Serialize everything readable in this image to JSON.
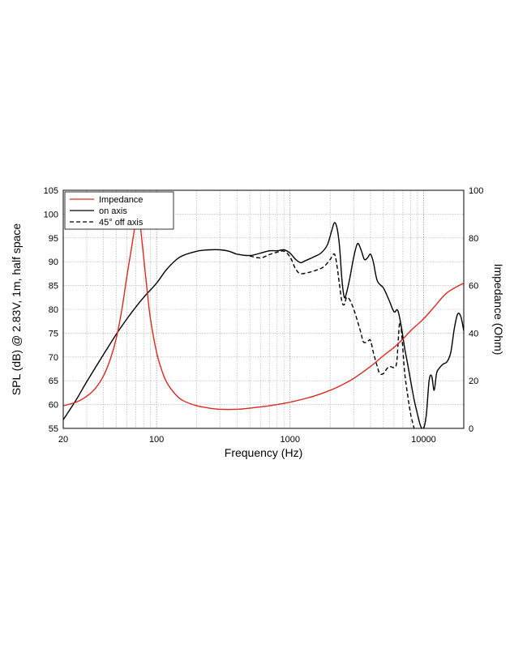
{
  "chart_data": {
    "type": "line",
    "title": "",
    "xlabel": "Frequency (Hz)",
    "ylabel": "SPL (dB) @ 2.83V, 1m, half space",
    "y2label": "Impedance (Ohm)",
    "xscale": "log",
    "xlim": [
      20,
      20000
    ],
    "ylim": [
      55,
      105
    ],
    "y2lim": [
      0,
      100
    ],
    "grid": true,
    "legend_position": "top-left",
    "x_tick_labels": [
      "20",
      "100",
      "1000",
      "10000"
    ],
    "x_ticks": [
      20,
      100,
      1000,
      10000
    ],
    "y_ticks": [
      55,
      60,
      65,
      70,
      75,
      80,
      85,
      90,
      95,
      100,
      105
    ],
    "y2_ticks": [
      0,
      20,
      40,
      60,
      80,
      100
    ],
    "series": [
      {
        "name": "Impedance",
        "color": "#d92b1f",
        "axis": "right",
        "style": "solid",
        "points": [
          [
            20,
            9.5
          ],
          [
            25,
            11
          ],
          [
            30,
            13.5
          ],
          [
            35,
            17
          ],
          [
            40,
            22
          ],
          [
            45,
            29
          ],
          [
            50,
            38
          ],
          [
            55,
            50
          ],
          [
            60,
            64
          ],
          [
            65,
            76
          ],
          [
            68,
            83
          ],
          [
            70,
            88
          ],
          [
            72,
            91
          ],
          [
            74,
            89
          ],
          [
            76,
            84
          ],
          [
            80,
            72
          ],
          [
            85,
            58
          ],
          [
            90,
            46
          ],
          [
            100,
            32
          ],
          [
            110,
            24
          ],
          [
            120,
            19
          ],
          [
            140,
            14
          ],
          [
            160,
            11.5
          ],
          [
            200,
            9.5
          ],
          [
            250,
            8.5
          ],
          [
            300,
            8
          ],
          [
            400,
            8
          ],
          [
            500,
            8.5
          ],
          [
            700,
            9.5
          ],
          [
            1000,
            11
          ],
          [
            1500,
            13.5
          ],
          [
            2000,
            16
          ],
          [
            2500,
            18.5
          ],
          [
            3000,
            21
          ],
          [
            4000,
            26
          ],
          [
            5000,
            30.5
          ],
          [
            6000,
            34
          ],
          [
            7000,
            37.5
          ],
          [
            8000,
            41
          ],
          [
            10000,
            46
          ],
          [
            12000,
            51
          ],
          [
            15000,
            57
          ],
          [
            20000,
            61
          ]
        ]
      },
      {
        "name": "on axis",
        "color": "#000000",
        "axis": "left",
        "style": "solid",
        "points": [
          [
            20,
            56.8
          ],
          [
            25,
            61
          ],
          [
            30,
            64.8
          ],
          [
            40,
            70.5
          ],
          [
            50,
            74.8
          ],
          [
            60,
            78
          ],
          [
            70,
            80.5
          ],
          [
            80,
            82.5
          ],
          [
            100,
            85.5
          ],
          [
            120,
            88.5
          ],
          [
            150,
            91
          ],
          [
            200,
            92.2
          ],
          [
            250,
            92.5
          ],
          [
            300,
            92.5
          ],
          [
            350,
            92.2
          ],
          [
            400,
            91.6
          ],
          [
            500,
            91.3
          ],
          [
            600,
            91.8
          ],
          [
            700,
            92.3
          ],
          [
            800,
            92.3
          ],
          [
            900,
            92.5
          ],
          [
            1000,
            91.8
          ],
          [
            1100,
            90.5
          ],
          [
            1200,
            89.8
          ],
          [
            1300,
            90.2
          ],
          [
            1500,
            91
          ],
          [
            1700,
            91.8
          ],
          [
            1900,
            93.5
          ],
          [
            2050,
            96.5
          ],
          [
            2150,
            98.2
          ],
          [
            2250,
            97
          ],
          [
            2350,
            93
          ],
          [
            2450,
            86
          ],
          [
            2550,
            82.5
          ],
          [
            2650,
            83.5
          ],
          [
            2800,
            86.5
          ],
          [
            3000,
            91
          ],
          [
            3200,
            93.8
          ],
          [
            3400,
            92.5
          ],
          [
            3600,
            90.5
          ],
          [
            3800,
            90.8
          ],
          [
            4000,
            91.6
          ],
          [
            4200,
            90
          ],
          [
            4500,
            86
          ],
          [
            5000,
            84.5
          ],
          [
            5500,
            82
          ],
          [
            6000,
            79.5
          ],
          [
            6400,
            79.8
          ],
          [
            6800,
            76.5
          ],
          [
            7200,
            72
          ],
          [
            7600,
            68.5
          ],
          [
            8000,
            65
          ],
          [
            8500,
            61
          ],
          [
            9000,
            58
          ],
          [
            9500,
            55.5
          ],
          [
            10000,
            55
          ],
          [
            10500,
            58
          ],
          [
            11000,
            65
          ],
          [
            11500,
            66
          ],
          [
            12000,
            63
          ],
          [
            12500,
            66.5
          ],
          [
            13000,
            67.5
          ],
          [
            14000,
            68.5
          ],
          [
            15000,
            69
          ],
          [
            16000,
            71
          ],
          [
            17000,
            76
          ],
          [
            18000,
            79
          ],
          [
            19000,
            78.5
          ],
          [
            20000,
            75.5
          ]
        ]
      },
      {
        "name": "45° off axis",
        "color": "#000000",
        "axis": "left",
        "style": "dashed",
        "points": [
          [
            500,
            91.2
          ],
          [
            600,
            90.8
          ],
          [
            700,
            91.5
          ],
          [
            800,
            92
          ],
          [
            900,
            92.2
          ],
          [
            1000,
            91
          ],
          [
            1100,
            88.5
          ],
          [
            1200,
            87.5
          ],
          [
            1400,
            87.8
          ],
          [
            1600,
            88.3
          ],
          [
            1800,
            89
          ],
          [
            2000,
            90.5
          ],
          [
            2150,
            91.6
          ],
          [
            2250,
            89
          ],
          [
            2350,
            85
          ],
          [
            2450,
            81.5
          ],
          [
            2550,
            81
          ],
          [
            2650,
            82.5
          ],
          [
            2800,
            82
          ],
          [
            3000,
            80
          ],
          [
            3200,
            77.5
          ],
          [
            3400,
            75
          ],
          [
            3500,
            73.5
          ],
          [
            3600,
            73
          ],
          [
            3800,
            73.2
          ],
          [
            4000,
            73.5
          ],
          [
            4200,
            71
          ],
          [
            4500,
            68
          ],
          [
            4700,
            66.5
          ],
          [
            5000,
            66.5
          ],
          [
            5300,
            67.5
          ],
          [
            5600,
            68
          ],
          [
            6000,
            67.8
          ],
          [
            6300,
            69
          ],
          [
            6600,
            77
          ],
          [
            6850,
            75
          ],
          [
            7200,
            67
          ],
          [
            7600,
            62
          ],
          [
            8000,
            58
          ],
          [
            8500,
            55
          ]
        ]
      }
    ]
  }
}
